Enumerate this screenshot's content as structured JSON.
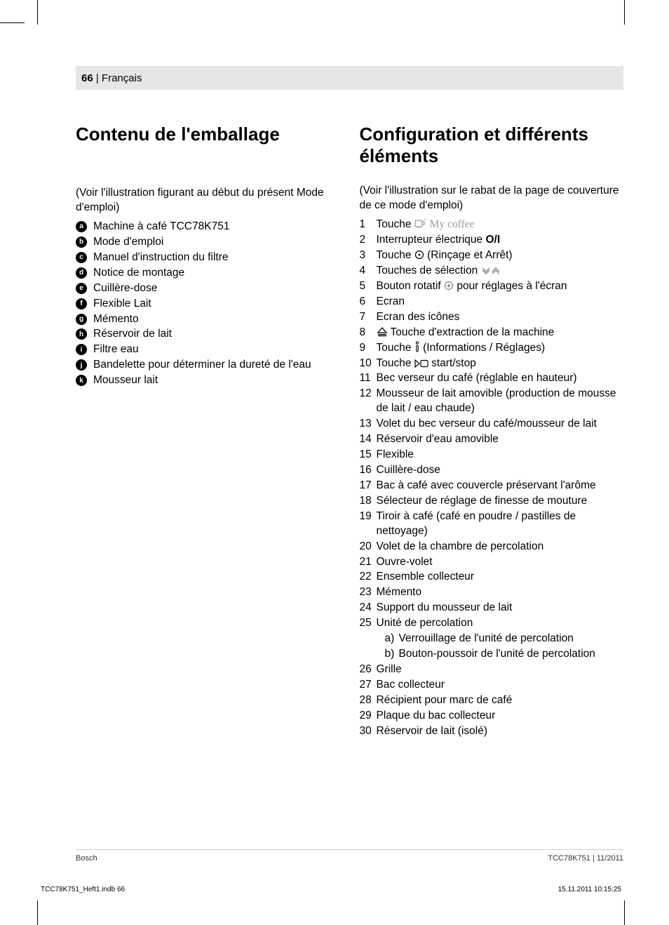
{
  "header": {
    "page_number": "66",
    "language": "Français"
  },
  "left": {
    "title": "Contenu de l'emballage",
    "intro": "(Voir l'illustration figurant au début du présent Mode d'emploi)",
    "items": [
      {
        "letter": "a",
        "text": "Machine à café TCC78K751"
      },
      {
        "letter": "b",
        "text": "Mode d'emploi"
      },
      {
        "letter": "c",
        "text": "Manuel d'instruction du filtre"
      },
      {
        "letter": "d",
        "text": "Notice de montage"
      },
      {
        "letter": "e",
        "text": "Cuillère-dose"
      },
      {
        "letter": "f",
        "text": "Flexible Lait"
      },
      {
        "letter": "g",
        "text": "Mémento"
      },
      {
        "letter": "h",
        "text": "Réservoir de lait"
      },
      {
        "letter": "i",
        "text": "Filtre eau"
      },
      {
        "letter": "j",
        "text": "Bandelette pour déterminer la dureté de l'eau"
      },
      {
        "letter": "k",
        "text": "Mousseur lait"
      }
    ]
  },
  "right": {
    "title": "Configuration et différents éléments",
    "intro": "(Voir l'illustration sur le rabat de la page de couverture de ce mode d'emploi)",
    "items": [
      {
        "num": "1",
        "pre": "Touche ",
        "icon": "cup",
        "post": " My coffee",
        "post_gray": true
      },
      {
        "num": "2",
        "pre": "Interrupteur électrique ",
        "bold": "O/I",
        "post": ""
      },
      {
        "num": "3",
        "pre": "Touche ",
        "icon": "circle-dot",
        "post": " (Rinçage et Arrêt)"
      },
      {
        "num": "4",
        "pre": "Touches de sélection ",
        "icon": "chevrons",
        "post": ""
      },
      {
        "num": "5",
        "pre": "Bouton rotatif ",
        "icon": "knob",
        "post": " pour réglages à l'écran"
      },
      {
        "num": "6",
        "pre": "Ecran"
      },
      {
        "num": "7",
        "pre": "Ecran des icônes"
      },
      {
        "num": "8",
        "icon_first": true,
        "icon": "eject",
        "pre": " Touche d'extraction de la machine"
      },
      {
        "num": "9",
        "pre": "Touche ",
        "icon": "info",
        "post": " (Informations / Réglages)"
      },
      {
        "num": "10",
        "pre": "Touche ",
        "icon": "startstop",
        "post": " start/stop"
      },
      {
        "num": "11",
        "pre": "Bec verseur du café (réglable en hauteur)"
      },
      {
        "num": "12",
        "pre": "Mousseur de lait amovible (production de mousse de lait / eau chaude)"
      },
      {
        "num": "13",
        "pre": "Volet du bec verseur du café/mousseur de lait"
      },
      {
        "num": "14",
        "pre": "Réservoir d'eau amovible"
      },
      {
        "num": "15",
        "pre": "Flexible"
      },
      {
        "num": "16",
        "pre": "Cuillère-dose"
      },
      {
        "num": "17",
        "pre": "Bac à café avec couvercle préservant l'arôme"
      },
      {
        "num": "18",
        "pre": "Sélecteur de réglage de finesse de mouture"
      },
      {
        "num": "19",
        "pre": "Tiroir à café (café en poudre / pastilles de nettoyage)"
      },
      {
        "num": "20",
        "pre": "Volet de la chambre de percolation"
      },
      {
        "num": "21",
        "pre": "Ouvre-volet"
      },
      {
        "num": "22",
        "pre": "Ensemble collecteur"
      },
      {
        "num": "23",
        "pre": "Mémento"
      },
      {
        "num": "24",
        "pre": "Support du mousseur de lait"
      },
      {
        "num": "25",
        "pre": "Unité de percolation",
        "sub": [
          {
            "sublabel": "a)",
            "subtext": "Verrouillage de l'unité de percolation"
          },
          {
            "sublabel": "b)",
            "subtext": "Bouton-poussoir de l'unité de percolation"
          }
        ]
      },
      {
        "num": "26",
        "pre": "Grille"
      },
      {
        "num": "27",
        "pre": "Bac collecteur"
      },
      {
        "num": "28",
        "pre": "Récipient pour marc de café"
      },
      {
        "num": "29",
        "pre": "Plaque du bac collecteur"
      },
      {
        "num": "30",
        "pre": "Réservoir de lait (isolé)"
      }
    ]
  },
  "footer": {
    "left": "Bosch",
    "right": "TCC78K751 | 11/2011"
  },
  "print_footer": {
    "left": "TCC78K751_Heft1.indb   66",
    "right": "15.11.2011   10:15:25"
  },
  "icons": {
    "cup_color": "#9a9a9a",
    "knob_color": "#9a9a9a",
    "text_color": "#000000",
    "header_bg": "#e6e6e6"
  }
}
